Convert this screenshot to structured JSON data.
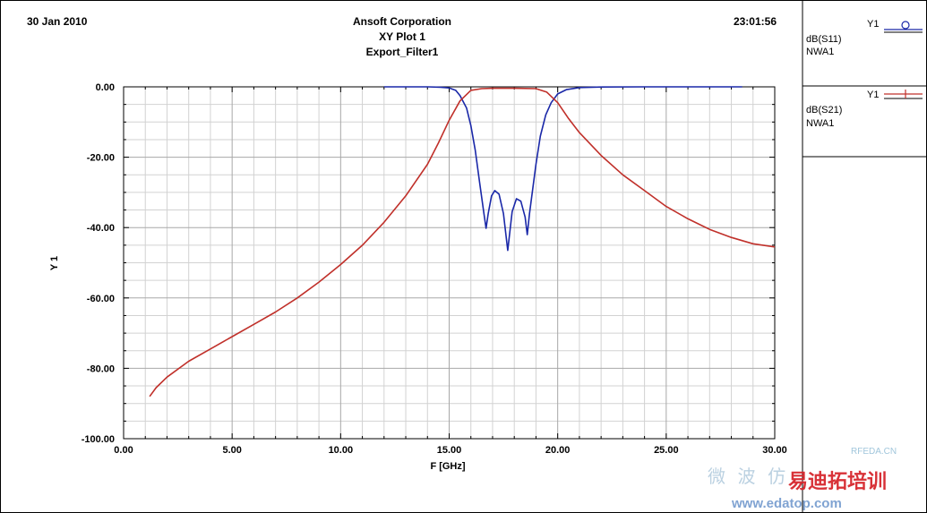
{
  "header": {
    "date": "30 Jan 2010",
    "company": "Ansoft Corporation",
    "plot_title": "XY Plot 1",
    "design": "Export_Filter1",
    "time": "23:01:56"
  },
  "legend": [
    {
      "axis": "Y1",
      "trace": "dB(S11)",
      "setup": "NWA1",
      "color": "#1a28a8",
      "marker": "circle"
    },
    {
      "axis": "Y1",
      "trace": "dB(S21)",
      "setup": "NWA1",
      "color": "#c0302a",
      "marker": "cross"
    }
  ],
  "watermark": {
    "latin": "RFEDA.CN",
    "cn_light": "微 波 仿",
    "cn_main": "易迪拓培训",
    "url": "www.edatop.com"
  },
  "chart_data": {
    "type": "line",
    "title": "XY Plot 1",
    "xlabel": "F [GHz]",
    "ylabel": "Y 1",
    "xlim": [
      0,
      30
    ],
    "ylim": [
      -100,
      0
    ],
    "x_ticks": [
      "0.00",
      "5.00",
      "10.00",
      "15.00",
      "20.00",
      "25.00",
      "30.00"
    ],
    "y_ticks": [
      "0.00",
      "-20.00",
      "-40.00",
      "-60.00",
      "-80.00",
      "-100.00"
    ],
    "grid": true,
    "series": [
      {
        "name": "dB(S11)",
        "color": "#1a28a8",
        "points": [
          [
            12.0,
            0.0
          ],
          [
            13.0,
            0.0
          ],
          [
            14.0,
            0.0
          ],
          [
            14.6,
            -0.1
          ],
          [
            15.0,
            -0.3
          ],
          [
            15.3,
            -1.0
          ],
          [
            15.5,
            -2.5
          ],
          [
            15.8,
            -6.0
          ],
          [
            16.0,
            -11.0
          ],
          [
            16.2,
            -18.0
          ],
          [
            16.4,
            -27.0
          ],
          [
            16.6,
            -36.0
          ],
          [
            16.7,
            -40.2
          ],
          [
            16.8,
            -36.0
          ],
          [
            16.95,
            -31.0
          ],
          [
            17.1,
            -29.5
          ],
          [
            17.3,
            -30.5
          ],
          [
            17.5,
            -36.0
          ],
          [
            17.7,
            -46.5
          ],
          [
            17.9,
            -35.5
          ],
          [
            18.1,
            -31.8
          ],
          [
            18.3,
            -32.5
          ],
          [
            18.5,
            -37.0
          ],
          [
            18.6,
            -42.0
          ],
          [
            18.7,
            -36.0
          ],
          [
            18.85,
            -29.0
          ],
          [
            19.0,
            -22.0
          ],
          [
            19.2,
            -14.0
          ],
          [
            19.45,
            -8.0
          ],
          [
            19.7,
            -4.5
          ],
          [
            20.0,
            -2.0
          ],
          [
            20.4,
            -0.8
          ],
          [
            21.0,
            -0.2
          ],
          [
            22.0,
            -0.05
          ],
          [
            24.0,
            0.0
          ],
          [
            26.0,
            0.0
          ],
          [
            28.5,
            0.0
          ]
        ]
      },
      {
        "name": "dB(S21)",
        "color": "#c0302a",
        "points": [
          [
            1.2,
            -88.0
          ],
          [
            1.5,
            -85.5
          ],
          [
            2.0,
            -82.5
          ],
          [
            3.0,
            -78.0
          ],
          [
            4.0,
            -74.5
          ],
          [
            5.0,
            -71.0
          ],
          [
            6.0,
            -67.5
          ],
          [
            7.0,
            -64.0
          ],
          [
            8.0,
            -60.0
          ],
          [
            9.0,
            -55.5
          ],
          [
            10.0,
            -50.5
          ],
          [
            11.0,
            -45.0
          ],
          [
            12.0,
            -38.5
          ],
          [
            13.0,
            -31.0
          ],
          [
            14.0,
            -22.0
          ],
          [
            14.5,
            -16.0
          ],
          [
            15.0,
            -9.5
          ],
          [
            15.5,
            -4.0
          ],
          [
            16.0,
            -1.0
          ],
          [
            16.5,
            -0.5
          ],
          [
            17.0,
            -0.4
          ],
          [
            18.0,
            -0.4
          ],
          [
            19.0,
            -0.5
          ],
          [
            19.5,
            -1.5
          ],
          [
            20.0,
            -4.5
          ],
          [
            20.5,
            -9.0
          ],
          [
            21.0,
            -13.0
          ],
          [
            22.0,
            -19.5
          ],
          [
            23.0,
            -25.0
          ],
          [
            24.0,
            -29.5
          ],
          [
            25.0,
            -34.0
          ],
          [
            26.0,
            -37.5
          ],
          [
            27.0,
            -40.5
          ],
          [
            28.0,
            -42.8
          ],
          [
            29.0,
            -44.6
          ],
          [
            30.0,
            -45.5
          ]
        ]
      }
    ]
  }
}
